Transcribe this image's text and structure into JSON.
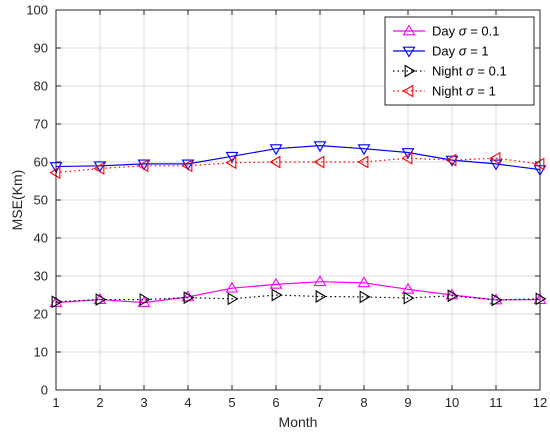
{
  "chart_data": {
    "type": "line",
    "xlabel": "Month",
    "ylabel": "MSE(Km)",
    "xlim": [
      1,
      12
    ],
    "ylim": [
      0,
      100
    ],
    "xticks": [
      1,
      2,
      3,
      4,
      5,
      6,
      7,
      8,
      9,
      10,
      11,
      12
    ],
    "yticks": [
      0,
      10,
      20,
      30,
      40,
      50,
      60,
      70,
      80,
      90,
      100
    ],
    "grid": true,
    "legend_position": "top-right",
    "x": [
      1,
      2,
      3,
      4,
      5,
      6,
      7,
      8,
      9,
      10,
      11,
      12
    ],
    "series": [
      {
        "name_prefix": "Day ",
        "name_symbol": "σ",
        "name_suffix": " = 0.1",
        "color": "#ff00ff",
        "line_style": "solid",
        "marker": "triangle-up",
        "values": [
          23.0,
          23.8,
          23.0,
          24.5,
          26.8,
          27.8,
          28.5,
          28.2,
          26.5,
          25.0,
          23.7,
          23.8
        ]
      },
      {
        "name_prefix": "Day ",
        "name_symbol": "σ",
        "name_suffix": " = 1",
        "color": "#0000ff",
        "line_style": "solid",
        "marker": "triangle-down",
        "values": [
          58.8,
          59.0,
          59.5,
          59.5,
          61.5,
          63.5,
          64.3,
          63.5,
          62.5,
          60.5,
          59.5,
          58.0
        ]
      },
      {
        "name_prefix": "Night ",
        "name_symbol": "σ",
        "name_suffix": " = 0.1",
        "color": "#000000",
        "line_style": "dotted",
        "marker": "triangle-right",
        "values": [
          23.2,
          23.8,
          23.8,
          24.3,
          24.0,
          25.0,
          24.6,
          24.5,
          24.2,
          24.8,
          23.7,
          24.0
        ]
      },
      {
        "name_prefix": "Night ",
        "name_symbol": "σ",
        "name_suffix": " = 1",
        "color": "#ff0000",
        "line_style": "dotted",
        "marker": "triangle-left",
        "values": [
          57.2,
          58.3,
          59.0,
          59.0,
          59.8,
          60.0,
          60.0,
          60.0,
          61.0,
          60.5,
          61.0,
          59.5
        ]
      }
    ]
  }
}
